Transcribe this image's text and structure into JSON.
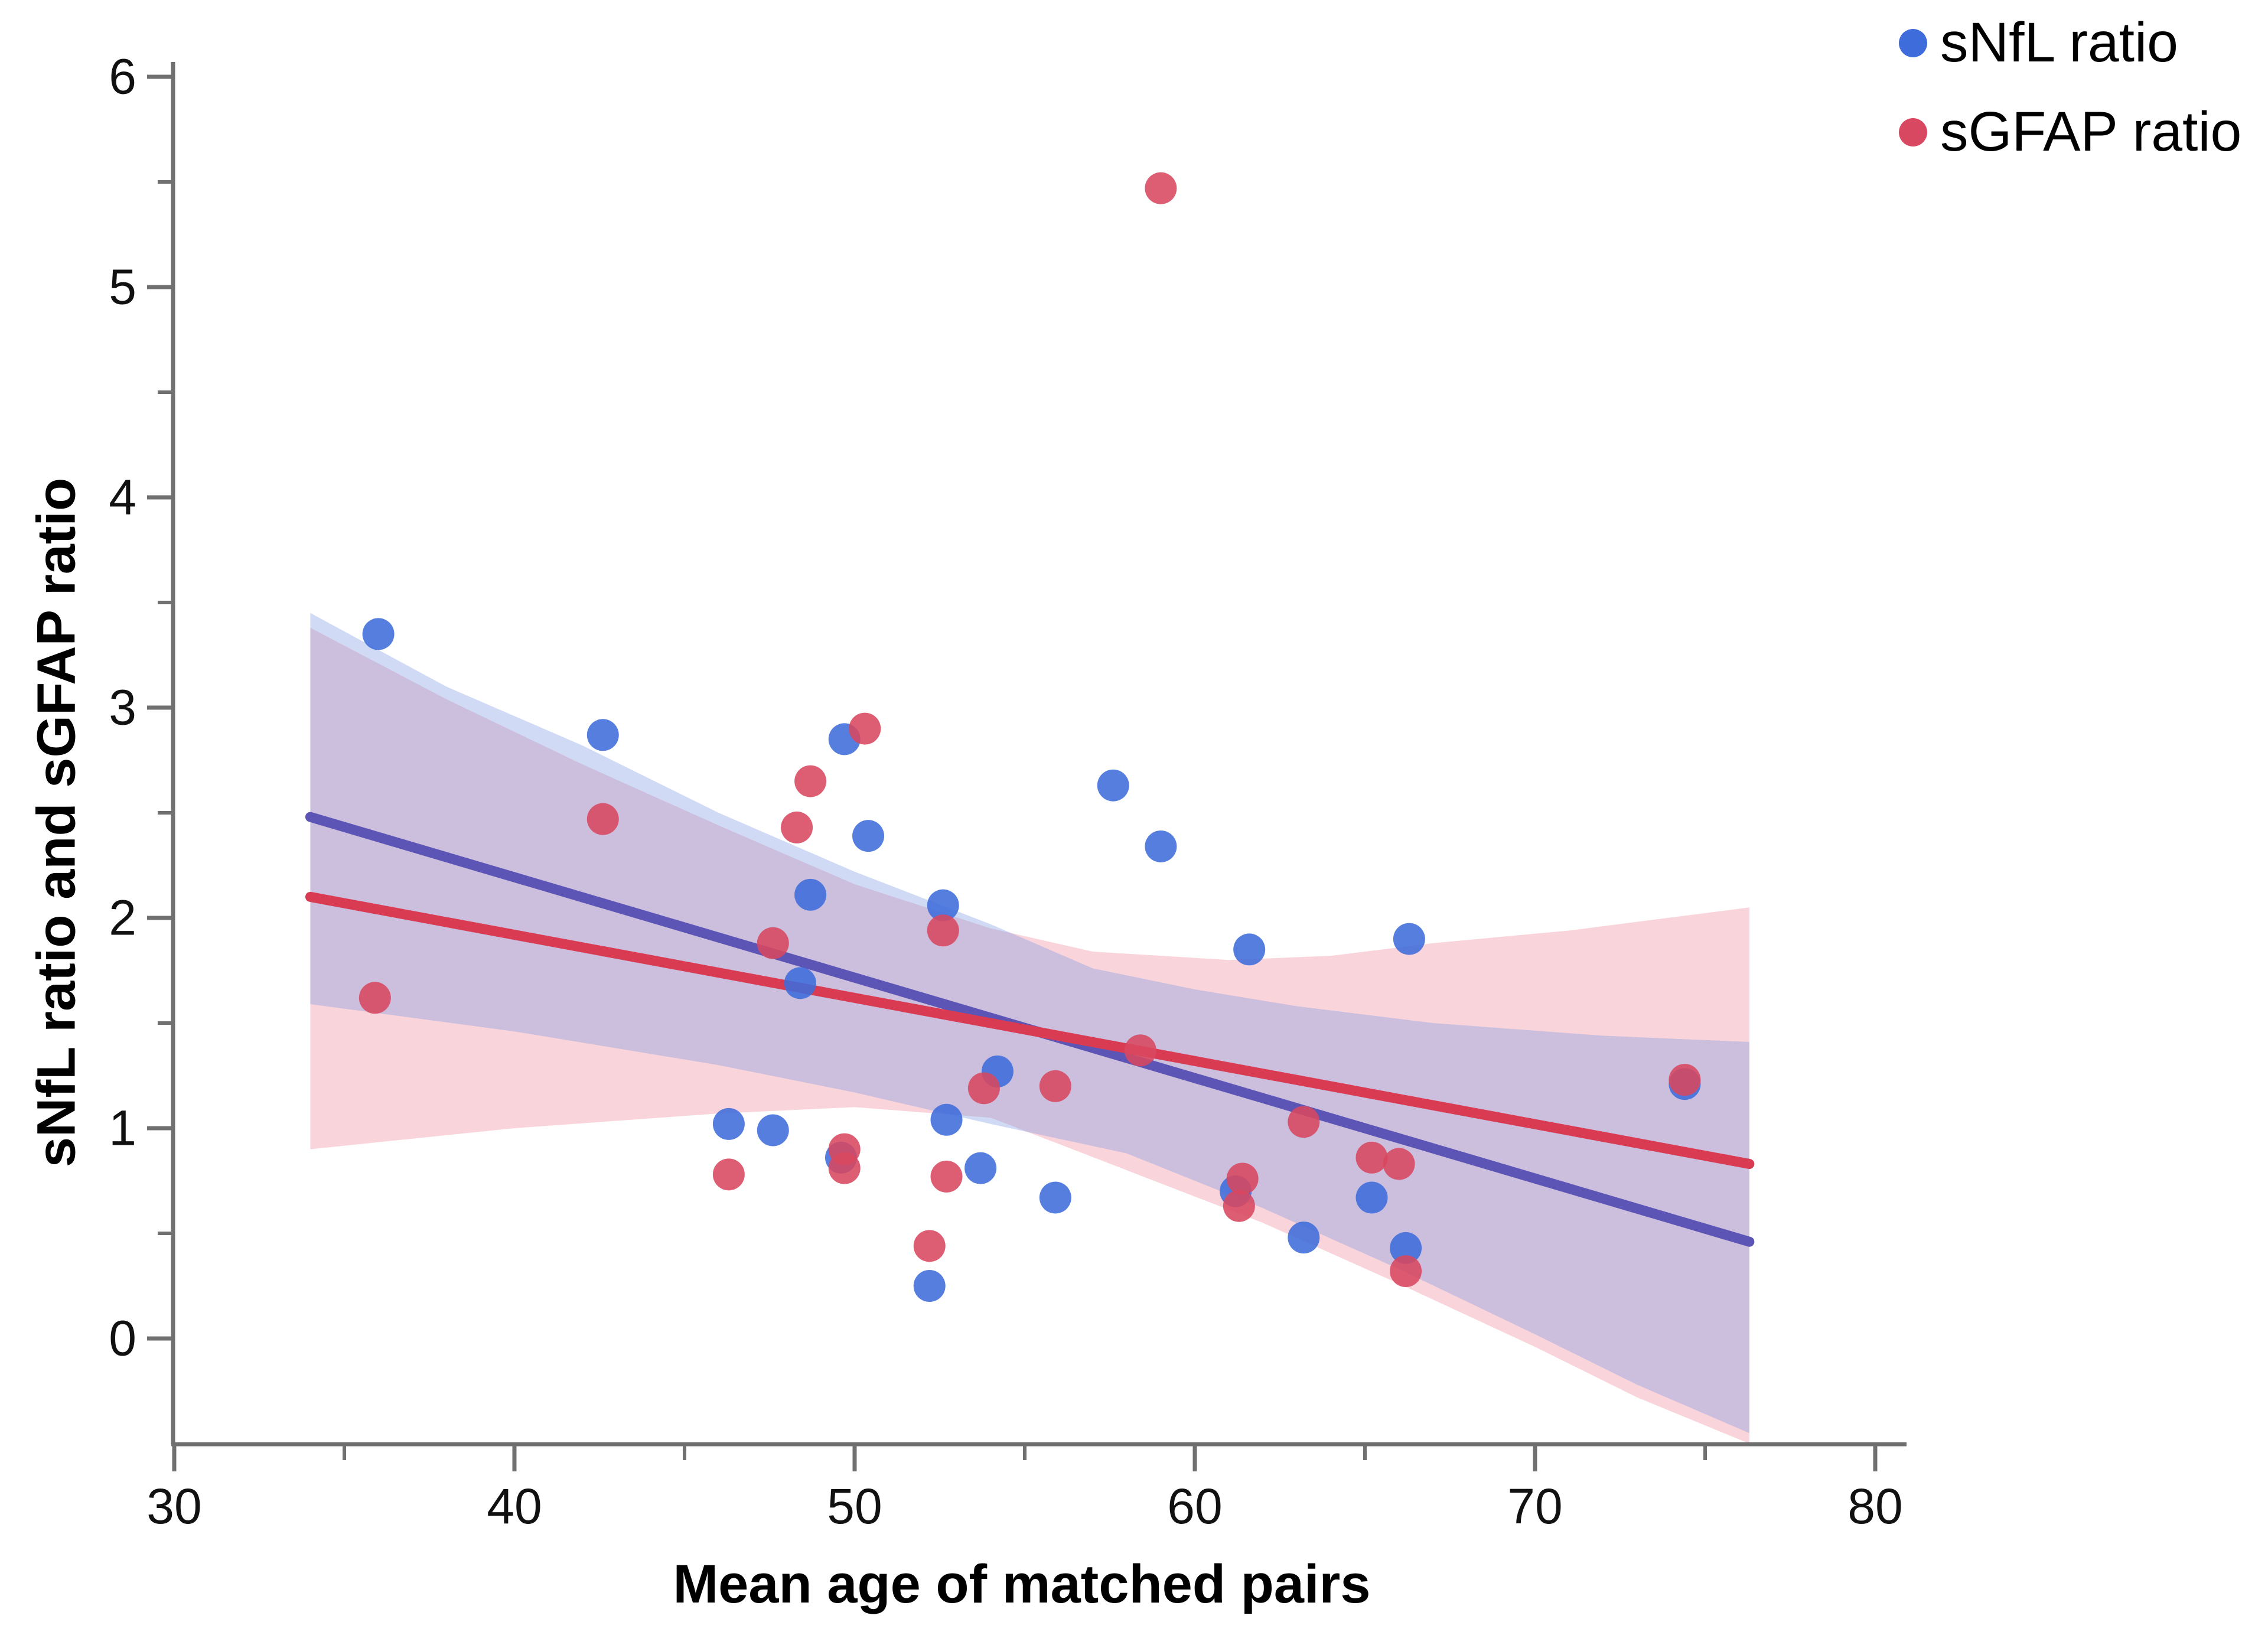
{
  "chart_data": {
    "type": "scatter",
    "title": "",
    "xlabel": "Mean age of matched pairs",
    "ylabel": "sNfL ratio and sGFAP ratio",
    "x_axis": {
      "range": [
        30,
        80
      ],
      "major_ticks": [
        30,
        40,
        50,
        60,
        70,
        80
      ],
      "minor_ticks": [
        35,
        45,
        55,
        65,
        75
      ]
    },
    "y_axis": {
      "range": [
        0,
        6
      ],
      "major_ticks": [
        0,
        1,
        2,
        3,
        4,
        5,
        6
      ],
      "minor_ticks": [
        0.5,
        1.5,
        2.5,
        3.5,
        4.5,
        5.5
      ]
    },
    "grid": false,
    "legend_position": "top-right",
    "series": [
      {
        "name": "sNfL ratio",
        "color": "#3E6CDB",
        "points": [
          [
            36.0,
            3.35
          ],
          [
            42.6,
            2.87
          ],
          [
            49.7,
            2.85
          ],
          [
            50.4,
            2.39
          ],
          [
            57.6,
            2.63
          ],
          [
            59.0,
            2.34
          ],
          [
            48.7,
            2.11
          ],
          [
            52.6,
            2.06
          ],
          [
            61.6,
            1.85
          ],
          [
            66.3,
            1.9
          ],
          [
            48.4,
            1.69
          ],
          [
            54.2,
            1.27
          ],
          [
            46.3,
            1.02
          ],
          [
            47.6,
            0.99
          ],
          [
            52.7,
            1.04
          ],
          [
            49.6,
            0.86
          ],
          [
            53.7,
            0.81
          ],
          [
            55.9,
            0.67
          ],
          [
            61.2,
            0.7
          ],
          [
            65.2,
            0.67
          ],
          [
            63.2,
            0.48
          ],
          [
            66.2,
            0.43
          ],
          [
            52.2,
            0.25
          ],
          [
            74.4,
            1.21
          ]
        ],
        "fit_line": {
          "x1": 34,
          "y1": 2.48,
          "x2": 76.3,
          "y2": 0.46,
          "color": "#5C55B5"
        },
        "band_color": "rgba(120,148,226,0.35)",
        "band_top": [
          [
            34,
            3.45
          ],
          [
            38,
            3.1
          ],
          [
            42,
            2.82
          ],
          [
            46,
            2.5
          ],
          [
            50,
            2.22
          ],
          [
            54,
            1.97
          ],
          [
            57,
            1.76
          ],
          [
            60,
            1.66
          ],
          [
            63,
            1.58
          ],
          [
            67,
            1.5
          ],
          [
            72,
            1.44
          ],
          [
            76.3,
            1.41
          ]
        ],
        "band_bottom": [
          [
            34,
            1.59
          ],
          [
            40,
            1.46
          ],
          [
            46,
            1.3
          ],
          [
            50,
            1.17
          ],
          [
            54,
            1.02
          ],
          [
            58,
            0.88
          ],
          [
            62,
            0.62
          ],
          [
            66,
            0.33
          ],
          [
            70,
            0.02
          ],
          [
            73,
            -0.22
          ],
          [
            76.3,
            -0.45
          ]
        ]
      },
      {
        "name": "sGFAP ratio",
        "color": "#D84860",
        "points": [
          [
            35.9,
            1.62
          ],
          [
            42.6,
            2.47
          ],
          [
            50.3,
            2.9
          ],
          [
            48.7,
            2.65
          ],
          [
            48.3,
            2.43
          ],
          [
            52.6,
            1.94
          ],
          [
            47.6,
            1.88
          ],
          [
            59.0,
            5.47
          ],
          [
            46.3,
            0.78
          ],
          [
            49.7,
            0.9
          ],
          [
            49.7,
            0.81
          ],
          [
            52.7,
            0.77
          ],
          [
            53.8,
            1.19
          ],
          [
            55.9,
            1.2
          ],
          [
            52.2,
            0.44
          ],
          [
            58.4,
            1.37
          ],
          [
            61.4,
            0.76
          ],
          [
            61.3,
            0.63
          ],
          [
            63.2,
            1.03
          ],
          [
            65.2,
            0.86
          ],
          [
            66.0,
            0.83
          ],
          [
            66.2,
            0.32
          ],
          [
            74.4,
            1.23
          ]
        ],
        "fit_line": {
          "x1": 34,
          "y1": 2.1,
          "x2": 76.3,
          "y2": 0.83,
          "color": "#D93B52"
        },
        "band_color": "rgba(240,150,165,0.40)",
        "band_top": [
          [
            34,
            3.38
          ],
          [
            38,
            3.04
          ],
          [
            42,
            2.73
          ],
          [
            46,
            2.44
          ],
          [
            50,
            2.16
          ],
          [
            54,
            1.95
          ],
          [
            57,
            1.84
          ],
          [
            61,
            1.8
          ],
          [
            64,
            1.82
          ],
          [
            67,
            1.88
          ],
          [
            71,
            1.94
          ],
          [
            76.3,
            2.05
          ]
        ],
        "band_bottom": [
          [
            34,
            0.9
          ],
          [
            40,
            1.0
          ],
          [
            46,
            1.07
          ],
          [
            50,
            1.1
          ],
          [
            54,
            1.05
          ],
          [
            58,
            0.8
          ],
          [
            62,
            0.55
          ],
          [
            66,
            0.26
          ],
          [
            70,
            -0.04
          ],
          [
            73,
            -0.28
          ],
          [
            76.3,
            -0.5
          ]
        ]
      }
    ]
  },
  "legend": {
    "items": [
      {
        "label": "sNfL ratio",
        "color": "#3E6CDB"
      },
      {
        "label": "sGFAP ratio",
        "color": "#D84860"
      }
    ]
  },
  "axis_titles": {
    "x": "Mean age of matched pairs",
    "y": "sNfL ratio and sGFAP ratio"
  },
  "style": {
    "axis_color": "#707070",
    "tick_label_color": "#111111",
    "point_radius": 27,
    "line_width": 17,
    "tick_font_size": 84
  }
}
